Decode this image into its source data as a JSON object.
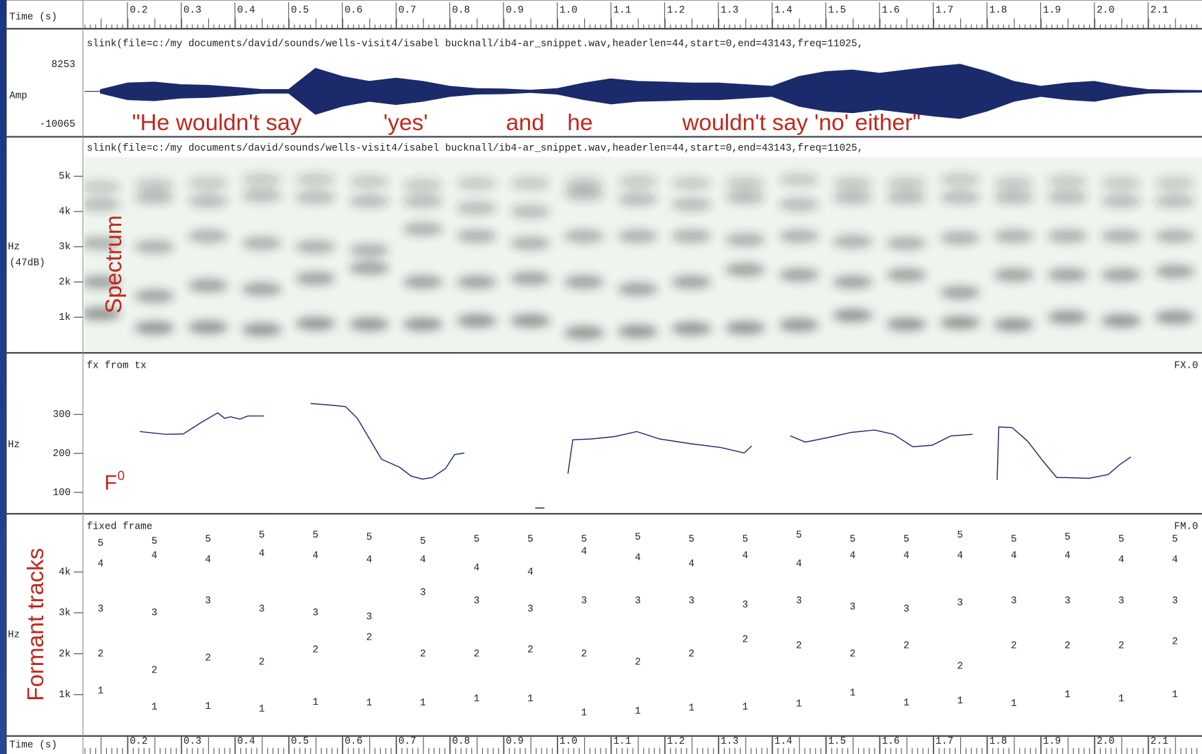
{
  "time_axis": {
    "label": "Time (s)",
    "xlim": [
      0.12,
      2.2
    ],
    "ticks": [
      0.2,
      0.3,
      0.4,
      0.5,
      0.6,
      0.7,
      0.8,
      0.9,
      {
        "value": 1,
        "label": "1.0"
      },
      1.1,
      1.2,
      1.3,
      1.4,
      1.5,
      1.6,
      1.7,
      1.8,
      1.9,
      {
        "value": 2,
        "label": "2.0"
      },
      2.1
    ]
  },
  "panels": {
    "waveform": {
      "header": "slink(file=c:/my documents/david/sounds/wells-visit4/isabel bucknall/ib4-ar_snippet.wav,headerlen=44,start=0,end=43143,freq=11025,",
      "y_label": "Amp",
      "ylim": [
        -12400,
        12500
      ],
      "yticks": [
        8253,
        -10065
      ],
      "color": "#1b2a6b",
      "x": [
        0.15,
        0.2,
        0.25,
        0.3,
        0.35,
        0.4,
        0.45,
        0.5,
        0.55,
        0.6,
        0.65,
        0.7,
        0.75,
        0.8,
        0.85,
        0.9,
        0.95,
        1.0,
        1.05,
        1.1,
        1.15,
        1.2,
        1.25,
        1.3,
        1.35,
        1.4,
        1.45,
        1.5,
        1.55,
        1.6,
        1.65,
        1.7,
        1.75,
        1.8,
        1.85,
        1.9,
        1.95,
        2.0,
        2.05,
        2.1,
        2.15,
        2.2
      ],
      "values": [
        500,
        2500,
        2800,
        2000,
        1800,
        1200,
        500,
        500,
        7000,
        4500,
        3000,
        4000,
        3000,
        1500,
        800,
        700,
        300,
        800,
        2500,
        3800,
        3000,
        2800,
        2500,
        2500,
        2000,
        1500,
        4500,
        6000,
        6500,
        5500,
        6500,
        7500,
        8253,
        6000,
        3000,
        1500,
        2500,
        3000,
        1500,
        500,
        300,
        200
      ]
    },
    "spectrum": {
      "header": "slink(file=c:/my documents/david/sounds/wells-visit4/isabel bucknall/ib4-ar_snippet.wav,headerlen=44,start=0,end=43143,freq=11025,",
      "y_label": "Hz",
      "y_sublabel": "(47dB)",
      "ylim": [
        0,
        5500
      ],
      "yticks": [
        {
          "value": 1000,
          "label": "1k"
        },
        {
          "value": 2000,
          "label": "2k"
        },
        {
          "value": 3000,
          "label": "3k"
        },
        {
          "value": 4000,
          "label": "4k"
        },
        {
          "value": 5000,
          "label": "5k"
        }
      ]
    },
    "f0": {
      "header": "fx from tx",
      "right_label": "FX.0",
      "y_label": "Hz",
      "ylim": [
        50,
        400
      ],
      "yticks": [
        100,
        200,
        300
      ],
      "color": "#1b2a6b",
      "x": [
        0.223,
        0.271,
        0.304,
        0.338,
        0.368,
        0.381,
        0.392,
        0.409,
        0.424,
        0.454,
        null,
        0.541,
        0.578,
        0.606,
        0.628,
        0.649,
        0.673,
        0.706,
        0.728,
        0.749,
        0.767,
        0.792,
        0.809,
        0.827,
        null,
        0.959,
        0.976,
        null,
        1.02,
        1.029,
        1.063,
        1.106,
        1.148,
        1.191,
        1.248,
        1.305,
        1.348,
        1.362,
        null,
        1.434,
        1.462,
        1.505,
        1.548,
        1.591,
        1.626,
        1.662,
        1.698,
        1.733,
        1.773,
        null,
        1.819,
        1.822,
        1.847,
        1.876,
        1.904,
        1.93,
        1.947,
        1.99,
        2.026,
        2.047,
        2.068
      ],
      "values": [
        256,
        249,
        250,
        280,
        304,
        290,
        294,
        288,
        296,
        296,
        null,
        328,
        324,
        320,
        290,
        241,
        185,
        165,
        142,
        134,
        138,
        161,
        197,
        201,
        null,
        60,
        60,
        null,
        148,
        235,
        237,
        243,
        256,
        237,
        225,
        215,
        201,
        219,
        null,
        245,
        229,
        241,
        254,
        260,
        249,
        217,
        221,
        245,
        249,
        null,
        132,
        268,
        266,
        231,
        181,
        138,
        138,
        136,
        146,
        171,
        191
      ]
    },
    "formants": {
      "header": "fixed frame",
      "right_label": "FM.0",
      "y_label": "Hz",
      "ylim": [
        0,
        5000
      ],
      "color": "#1b2a6b",
      "yticks": [
        {
          "value": 1000,
          "label": "1k"
        },
        {
          "value": 2000,
          "label": "2k"
        },
        {
          "value": 3000,
          "label": "3k"
        },
        {
          "value": 4000,
          "label": "4k"
        }
      ],
      "x": [
        0.15,
        0.25,
        0.35,
        0.45,
        0.55,
        0.65,
        0.75,
        0.85,
        0.95,
        1.05,
        1.15,
        1.25,
        1.35,
        1.45,
        1.55,
        1.65,
        1.75,
        1.85,
        1.95,
        2.05,
        2.15
      ],
      "series": [
        {
          "name": "1",
          "values": [
            1100,
            700,
            720,
            650,
            820,
            800,
            800,
            900,
            900,
            560,
            600,
            680,
            700,
            780,
            1050,
            800,
            850,
            790,
            1000,
            900,
            1000
          ]
        },
        {
          "name": "2",
          "values": [
            2000,
            1600,
            1900,
            1800,
            2100,
            2400,
            2000,
            2000,
            2100,
            2000,
            1800,
            2000,
            2350,
            2200,
            2000,
            2200,
            1700,
            2200,
            2200,
            2200,
            2300
          ]
        },
        {
          "name": "3",
          "values": [
            3100,
            3000,
            3300,
            3100,
            3000,
            2900,
            3500,
            3300,
            3100,
            3300,
            3300,
            3300,
            3200,
            3300,
            3150,
            3100,
            3250,
            3300,
            3300,
            3300,
            3300
          ]
        },
        {
          "name": "4",
          "values": [
            4200,
            4400,
            4300,
            4450,
            4400,
            4300,
            4300,
            4100,
            4000,
            4500,
            4350,
            4200,
            4400,
            4200,
            4400,
            4400,
            4400,
            4400,
            4400,
            4300,
            4300
          ]
        },
        {
          "name": "5",
          "values": [
            4700,
            4750,
            4800,
            4900,
            4900,
            4850,
            4750,
            4800,
            4800,
            4800,
            4850,
            4800,
            4800,
            4900,
            4800,
            4800,
            4900,
            4800,
            4850,
            4800,
            4800
          ]
        }
      ]
    }
  },
  "annotations": {
    "phrases": [
      "\"He wouldn't say",
      "'yes'",
      "and",
      "he",
      "wouldn't say 'no' either\""
    ],
    "spectrum": "Spectrum",
    "f0": "F",
    "f0_sup": "0",
    "formants": "Formant tracks"
  }
}
